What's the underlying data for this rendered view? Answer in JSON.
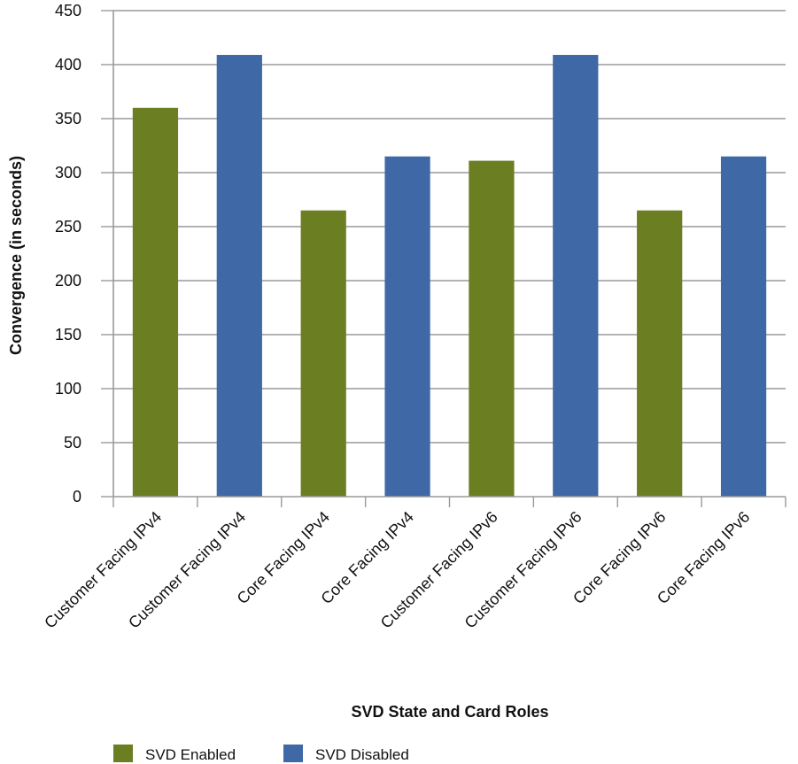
{
  "chart_data": {
    "type": "bar",
    "title": "",
    "xlabel": "SVD State and Card Roles",
    "ylabel": "Convergence (in seconds)",
    "ylim": [
      0,
      450
    ],
    "yticks": [
      0,
      50,
      100,
      150,
      200,
      250,
      300,
      350,
      400,
      450
    ],
    "grid": true,
    "legend_position": "bottom-left",
    "categories": [
      "Customer Facing IPv4",
      "Customer Facing IPv4",
      "Core Facing IPv4",
      "Core Facing IPv4",
      "Customer Facing IPv6",
      "Customer Facing IPv6",
      "Core Facing IPv6",
      "Core Facing IPv6"
    ],
    "values": [
      360,
      409,
      265,
      315,
      311,
      409,
      265,
      315
    ],
    "bar_series": [
      0,
      1,
      0,
      1,
      0,
      1,
      0,
      1
    ],
    "series": [
      {
        "name": "SVD Enabled",
        "color": "#6b7f22"
      },
      {
        "name": "SVD Disabled",
        "color": "#3f68a6"
      }
    ]
  }
}
